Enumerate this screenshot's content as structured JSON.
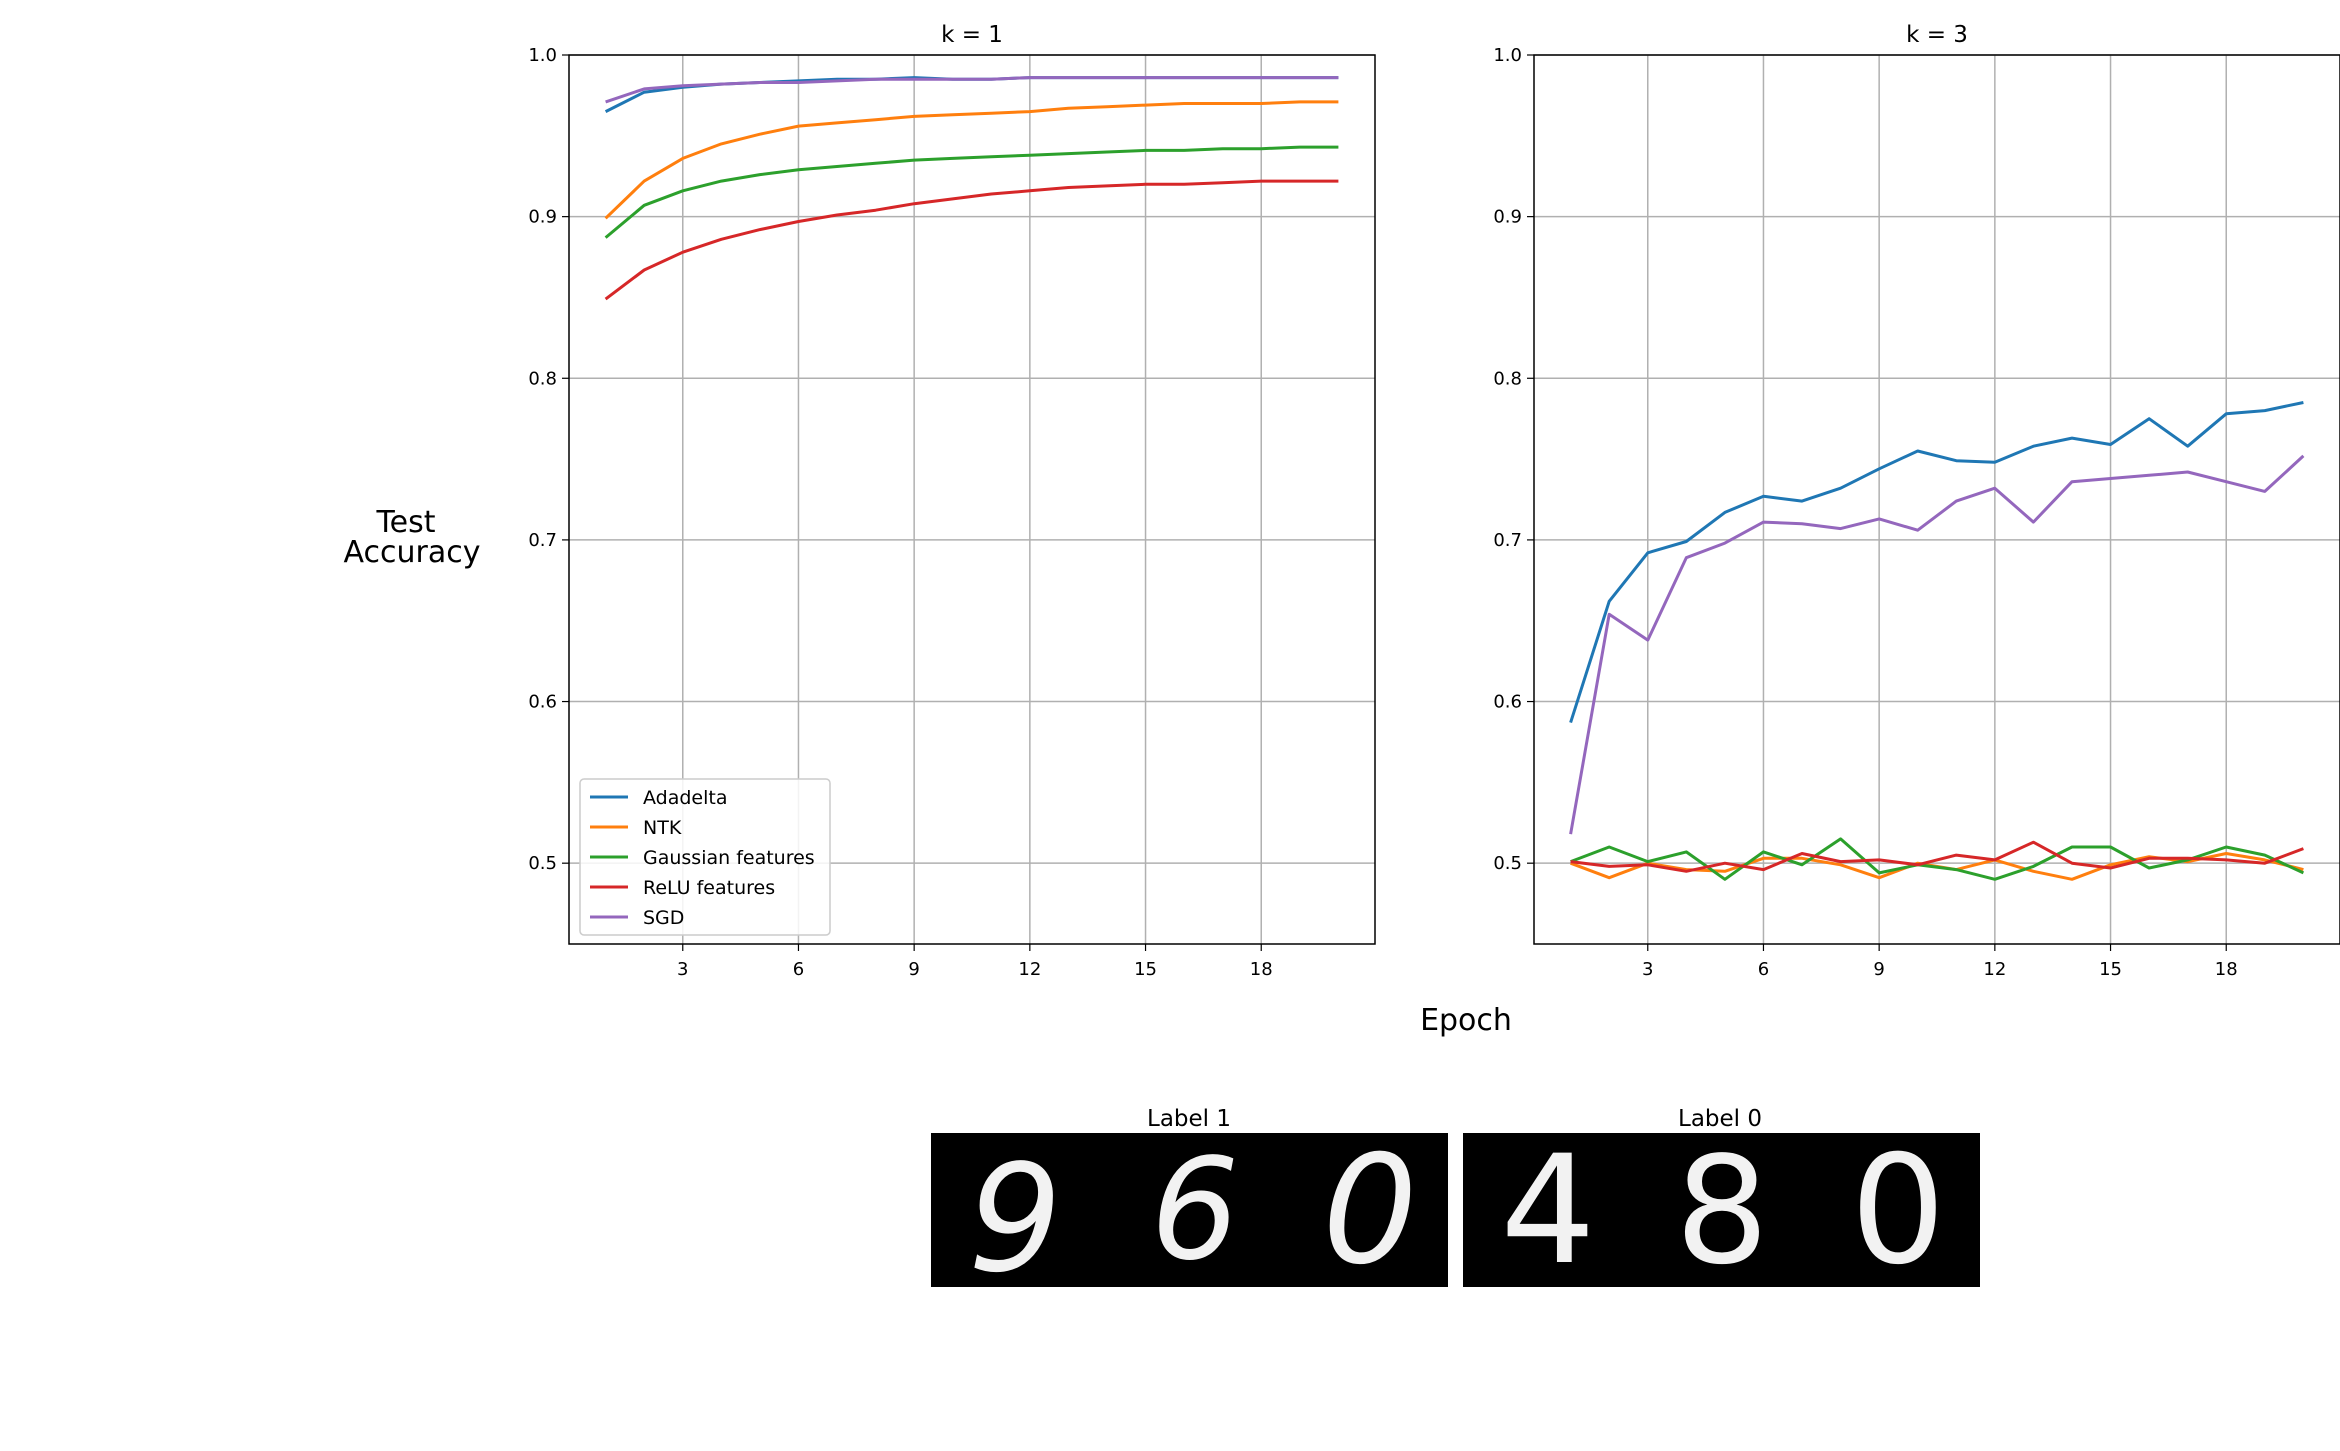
{
  "figure": {
    "ylabel_lines": [
      "Test",
      "Accuracy"
    ],
    "xlabel": "Epoch"
  },
  "colors": {
    "Adadelta": "#1f77b4",
    "NTK": "#ff7f0e",
    "Gaussian features": "#2ca02c",
    "ReLU features": "#d62728",
    "SGD": "#9467bd",
    "grid": "#b0b0b0"
  },
  "chart_data": [
    {
      "type": "line",
      "title": "k = 1",
      "x": [
        1,
        2,
        3,
        4,
        5,
        6,
        7,
        8,
        9,
        10,
        11,
        12,
        13,
        14,
        15,
        16,
        17,
        18,
        19,
        20
      ],
      "xticks": [
        3,
        6,
        9,
        12,
        15,
        18
      ],
      "xlim": [
        0.05,
        20.95
      ],
      "ylim": [
        0.45,
        1.0
      ],
      "yticks": [
        "0.5",
        "0.6",
        "0.7",
        "0.8",
        "0.9",
        "1.0"
      ],
      "grid": true,
      "legend": "lower-left",
      "series": [
        {
          "name": "Adadelta",
          "values": [
            0.965,
            0.977,
            0.98,
            0.982,
            0.983,
            0.984,
            0.985,
            0.985,
            0.986,
            0.985,
            0.985,
            0.986,
            0.986,
            0.986,
            0.986,
            0.986,
            0.986,
            0.986,
            0.986,
            0.986
          ]
        },
        {
          "name": "NTK",
          "values": [
            0.899,
            0.922,
            0.936,
            0.945,
            0.951,
            0.956,
            0.958,
            0.96,
            0.962,
            0.963,
            0.964,
            0.965,
            0.967,
            0.968,
            0.969,
            0.97,
            0.97,
            0.97,
            0.971,
            0.971
          ]
        },
        {
          "name": "Gaussian features",
          "values": [
            0.887,
            0.907,
            0.916,
            0.922,
            0.926,
            0.929,
            0.931,
            0.933,
            0.935,
            0.936,
            0.937,
            0.938,
            0.939,
            0.94,
            0.941,
            0.941,
            0.942,
            0.942,
            0.943,
            0.943
          ]
        },
        {
          "name": "ReLU features",
          "values": [
            0.849,
            0.867,
            0.878,
            0.886,
            0.892,
            0.897,
            0.901,
            0.904,
            0.908,
            0.911,
            0.914,
            0.916,
            0.918,
            0.919,
            0.92,
            0.92,
            0.921,
            0.922,
            0.922,
            0.922
          ]
        },
        {
          "name": "SGD",
          "values": [
            0.971,
            0.979,
            0.981,
            0.982,
            0.983,
            0.983,
            0.984,
            0.985,
            0.985,
            0.985,
            0.985,
            0.986,
            0.986,
            0.986,
            0.986,
            0.986,
            0.986,
            0.986,
            0.986,
            0.986
          ]
        }
      ]
    },
    {
      "type": "line",
      "title": "k = 3",
      "x": [
        1,
        2,
        3,
        4,
        5,
        6,
        7,
        8,
        9,
        10,
        11,
        12,
        13,
        14,
        15,
        16,
        17,
        18,
        19,
        20
      ],
      "xticks": [
        3,
        6,
        9,
        12,
        15,
        18
      ],
      "xlim": [
        0.05,
        20.95
      ],
      "ylim": [
        0.45,
        1.0
      ],
      "yticks": [
        "0.5",
        "0.6",
        "0.7",
        "0.8",
        "0.9",
        "1.0"
      ],
      "grid": true,
      "series": [
        {
          "name": "Adadelta",
          "values": [
            0.587,
            0.662,
            0.692,
            0.699,
            0.717,
            0.727,
            0.724,
            0.732,
            0.744,
            0.755,
            0.749,
            0.748,
            0.758,
            0.763,
            0.759,
            0.775,
            0.758,
            0.778,
            0.78,
            0.785
          ]
        },
        {
          "name": "NTK",
          "values": [
            0.5,
            0.491,
            0.5,
            0.496,
            0.495,
            0.503,
            0.503,
            0.499,
            0.491,
            0.5,
            0.496,
            0.502,
            0.495,
            0.49,
            0.499,
            0.504,
            0.501,
            0.506,
            0.502,
            0.496
          ]
        },
        {
          "name": "Gaussian features",
          "values": [
            0.501,
            0.51,
            0.501,
            0.507,
            0.49,
            0.507,
            0.499,
            0.515,
            0.494,
            0.499,
            0.496,
            0.49,
            0.498,
            0.51,
            0.51,
            0.497,
            0.502,
            0.51,
            0.505,
            0.494
          ]
        },
        {
          "name": "ReLU features",
          "values": [
            0.501,
            0.498,
            0.499,
            0.495,
            0.5,
            0.496,
            0.506,
            0.501,
            0.502,
            0.499,
            0.505,
            0.502,
            0.513,
            0.5,
            0.497,
            0.503,
            0.503,
            0.502,
            0.5,
            0.509
          ]
        },
        {
          "name": "SGD",
          "values": [
            0.518,
            0.654,
            0.638,
            0.689,
            0.698,
            0.711,
            0.71,
            0.707,
            0.713,
            0.706,
            0.724,
            0.732,
            0.711,
            0.736,
            0.738,
            0.74,
            0.742,
            0.736,
            0.73,
            0.752
          ]
        }
      ]
    }
  ],
  "samples": [
    {
      "title": "Label 1",
      "digits": [
        "9",
        "6",
        "0"
      ]
    },
    {
      "title": "Label 0",
      "digits": [
        "4",
        "8",
        "0"
      ]
    }
  ]
}
